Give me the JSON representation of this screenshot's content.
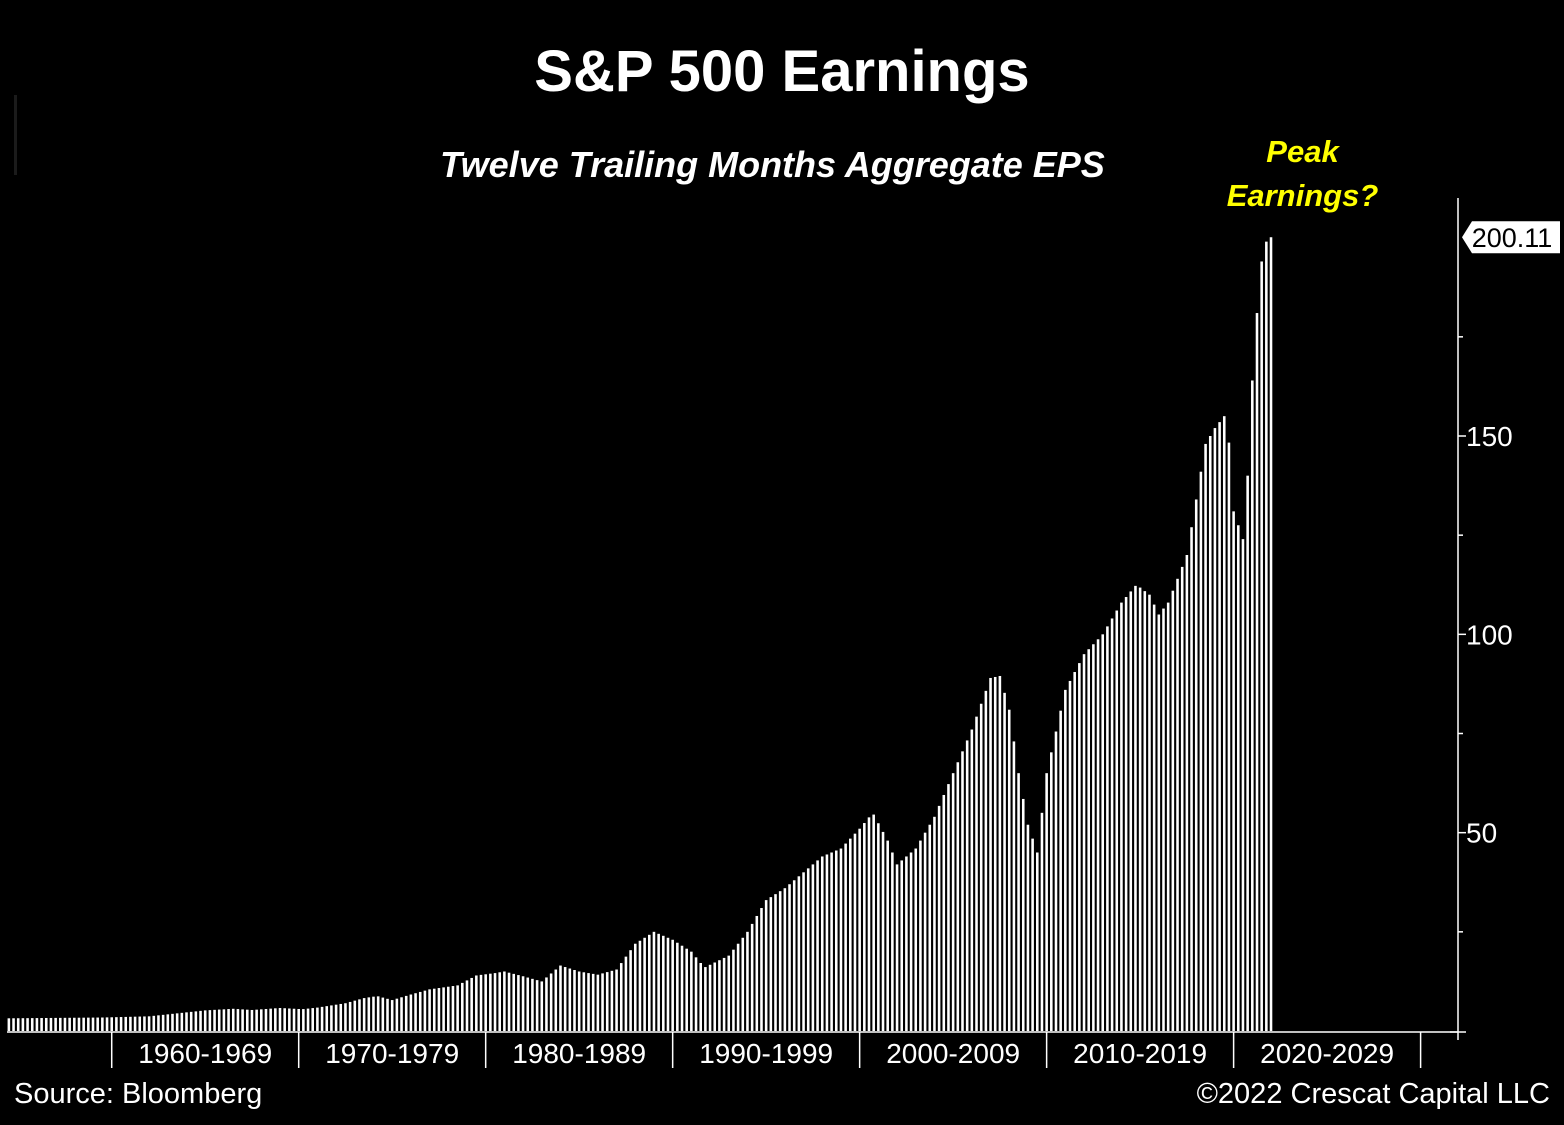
{
  "title": "S&P 500 Earnings",
  "subtitle": "Twelve Trailing Months Aggregate EPS",
  "annotation": "Peak Earnings?",
  "annotation_lines": [
    "Peak",
    "Earnings?"
  ],
  "source": "Source: Bloomberg",
  "copyright": "©2022 Crescat Capital LLC",
  "colors": {
    "background": "#000000",
    "bars": "#ffffff",
    "annotation": "#ffff00",
    "text": "#ffffff"
  },
  "chart_data": {
    "type": "bar",
    "title": "S&P 500 Earnings",
    "subtitle": "Twelve Trailing Months Aggregate EPS",
    "xlabel": "",
    "ylabel": "",
    "frequency": "quarterly",
    "x_start": 1954.5,
    "x_range": [
      1954.4,
      2032.0
    ],
    "ylim": [
      0,
      210
    ],
    "y_ticks": [
      50,
      100,
      150
    ],
    "y_axis_side": "right",
    "x_tick_labels": [
      "1960-1969",
      "1970-1979",
      "1980-1989",
      "1990-1999",
      "2000-2009",
      "2010-2019",
      "2020-2029"
    ],
    "x_decade_bounds": [
      1960,
      1970,
      1980,
      1990,
      2000,
      2010,
      2020,
      2030
    ],
    "last_value_label": "200.11",
    "grid": false,
    "legend": "none",
    "anchors": [
      [
        1954.5,
        3.2
      ],
      [
        1959.5,
        3.4
      ],
      [
        1962.0,
        3.7
      ],
      [
        1965.0,
        5.2
      ],
      [
        1966.5,
        5.6
      ],
      [
        1967.5,
        5.3
      ],
      [
        1969.0,
        5.8
      ],
      [
        1970.2,
        5.5
      ],
      [
        1971.0,
        5.9
      ],
      [
        1972.5,
        7.0
      ],
      [
        1973.5,
        8.3
      ],
      [
        1974.2,
        8.8
      ],
      [
        1975.0,
        7.8
      ],
      [
        1976.0,
        9.2
      ],
      [
        1977.0,
        10.5
      ],
      [
        1978.5,
        11.5
      ],
      [
        1979.5,
        14.0
      ],
      [
        1980.5,
        14.6
      ],
      [
        1981.0,
        15.0
      ],
      [
        1982.0,
        13.8
      ],
      [
        1983.0,
        12.5
      ],
      [
        1984.0,
        16.5
      ],
      [
        1985.0,
        15.0
      ],
      [
        1986.0,
        14.2
      ],
      [
        1987.0,
        15.5
      ],
      [
        1988.0,
        22.0
      ],
      [
        1989.0,
        25.0
      ],
      [
        1990.0,
        23.0
      ],
      [
        1991.0,
        20.0
      ],
      [
        1991.7,
        16.0
      ],
      [
        1993.0,
        19.0
      ],
      [
        1994.0,
        25.0
      ],
      [
        1995.0,
        33.0
      ],
      [
        1996.0,
        36.0
      ],
      [
        1997.0,
        40.0
      ],
      [
        1998.0,
        44.0
      ],
      [
        1999.0,
        46.0
      ],
      [
        2000.0,
        51.0
      ],
      [
        2000.7,
        55.0
      ],
      [
        2001.5,
        48.0
      ],
      [
        2002.0,
        42.0
      ],
      [
        2003.0,
        46.0
      ],
      [
        2004.0,
        54.0
      ],
      [
        2005.0,
        65.0
      ],
      [
        2006.0,
        76.0
      ],
      [
        2007.0,
        89.0
      ],
      [
        2007.5,
        89.5
      ],
      [
        2008.0,
        81.0
      ],
      [
        2008.5,
        65.0
      ],
      [
        2009.0,
        52.0
      ],
      [
        2009.5,
        45.0
      ],
      [
        2010.0,
        65.0
      ],
      [
        2011.0,
        86.0
      ],
      [
        2012.0,
        95.0
      ],
      [
        2013.0,
        100.0
      ],
      [
        2014.0,
        108.0
      ],
      [
        2014.8,
        112.5
      ],
      [
        2015.5,
        110.0
      ],
      [
        2016.0,
        105.0
      ],
      [
        2016.5,
        108.0
      ],
      [
        2017.5,
        120.0
      ],
      [
        2018.5,
        148.0
      ],
      [
        2019.0,
        152.0
      ],
      [
        2019.5,
        155.0
      ],
      [
        2019.8,
        147.0
      ],
      [
        2020.0,
        131.0
      ],
      [
        2020.5,
        124.0
      ],
      [
        2020.75,
        140.0
      ],
      [
        2021.0,
        164.0
      ],
      [
        2021.25,
        181.0
      ],
      [
        2021.5,
        194.0
      ],
      [
        2021.75,
        199.0
      ],
      [
        2022.0,
        200.11
      ]
    ]
  }
}
